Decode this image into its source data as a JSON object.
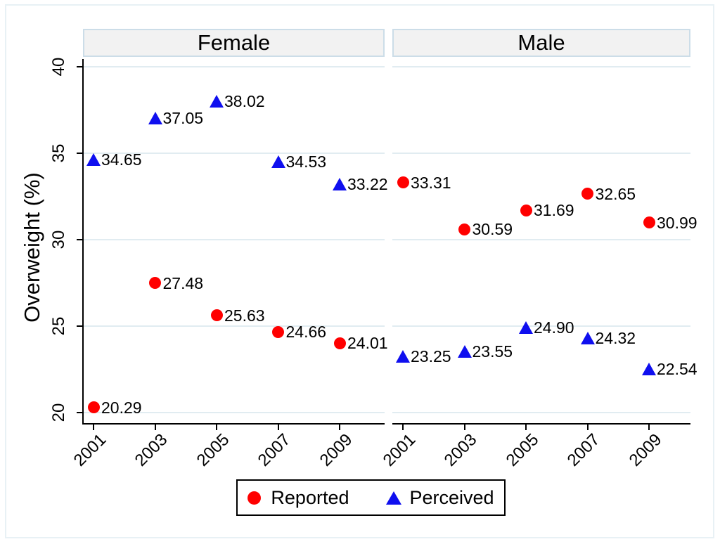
{
  "chart_data": {
    "type": "scatter",
    "ylabel": "Overweight (%)",
    "x_ticks": [
      "2001",
      "2003",
      "2005",
      "2007",
      "2009"
    ],
    "y_ticks": [
      40,
      35,
      30,
      25,
      20
    ],
    "ylim": [
      19.3,
      40.6
    ],
    "grid": true,
    "legend_position": "bottom",
    "legend": [
      {
        "label": "Reported",
        "marker": "circle",
        "color": "#ff0000"
      },
      {
        "label": "Perceived",
        "marker": "triangle",
        "color": "#0f0fef"
      }
    ],
    "panels": [
      {
        "title": "Female",
        "series": [
          {
            "name": "Reported",
            "marker": "circle",
            "color": "#ff0000",
            "x": [
              2001,
              2003,
              2005,
              2007,
              2009
            ],
            "y": [
              20.29,
              27.48,
              25.63,
              24.66,
              24.01
            ],
            "labels": [
              "20.29",
              "27.48",
              "25.63",
              "24.66",
              "24.01"
            ]
          },
          {
            "name": "Perceived",
            "marker": "triangle",
            "color": "#0f0fef",
            "x": [
              2001,
              2003,
              2005,
              2007,
              2009
            ],
            "y": [
              34.65,
              37.05,
              38.02,
              34.53,
              33.22
            ],
            "labels": [
              "34.65",
              "37.05",
              "38.02",
              "34.53",
              "33.22"
            ]
          }
        ]
      },
      {
        "title": "Male",
        "series": [
          {
            "name": "Reported",
            "marker": "circle",
            "color": "#ff0000",
            "x": [
              2001,
              2003,
              2005,
              2007,
              2009
            ],
            "y": [
              33.31,
              30.59,
              31.69,
              32.65,
              30.99
            ],
            "labels": [
              "33.31",
              "30.59",
              "31.69",
              "32.65",
              "30.99"
            ]
          },
          {
            "name": "Perceived",
            "marker": "triangle",
            "color": "#0f0fef",
            "x": [
              2001,
              2003,
              2005,
              2007,
              2009
            ],
            "y": [
              23.25,
              23.55,
              24.9,
              24.32,
              22.54
            ],
            "labels": [
              "23.25",
              "23.55",
              "24.90",
              "24.32",
              "22.54"
            ]
          }
        ]
      }
    ],
    "colors": {
      "grid": "#e1ecf1",
      "axis": "#000000",
      "header_fill": "#f2f2f2",
      "header_border": "#ccdde8",
      "outer_border": "#e8f1f5"
    }
  }
}
